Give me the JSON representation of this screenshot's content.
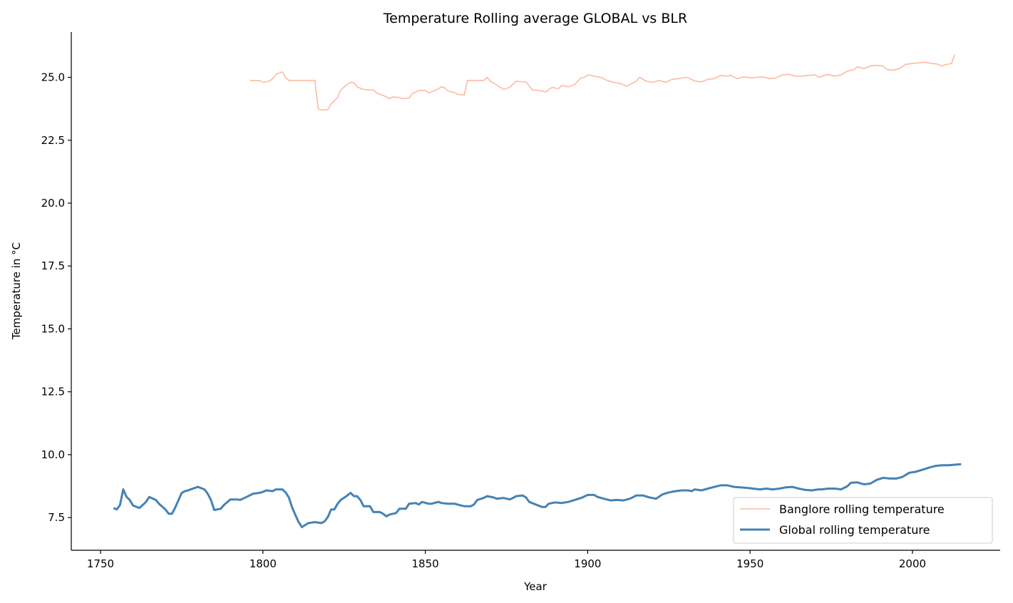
{
  "chart_data": {
    "type": "line",
    "title": "Temperature Rolling average GLOBAL vs BLR",
    "xlabel": "Year",
    "ylabel": "Temperature in °C",
    "xlim": [
      1741,
      2027
    ],
    "ylim": [
      6.2,
      26.8
    ],
    "xticks": [
      1750,
      1800,
      1850,
      1900,
      1950,
      2000
    ],
    "yticks": [
      7.5,
      10.0,
      12.5,
      15.0,
      17.5,
      20.0,
      22.5,
      25.0
    ],
    "grid": false,
    "legend_position": "lower-right",
    "series": [
      {
        "name": "Banglore rolling temperature",
        "color": "#fcbba1",
        "points": [
          [
            1796,
            24.87
          ],
          [
            1799,
            24.87
          ],
          [
            1800,
            24.8
          ],
          [
            1802,
            24.85
          ],
          [
            1803,
            24.95
          ],
          [
            1804,
            25.12
          ],
          [
            1806,
            25.22
          ],
          [
            1807,
            24.98
          ],
          [
            1808,
            24.88
          ],
          [
            1810,
            24.88
          ],
          [
            1812,
            24.88
          ],
          [
            1814,
            24.88
          ],
          [
            1816,
            24.88
          ],
          [
            1817,
            23.75
          ],
          [
            1818,
            23.7
          ],
          [
            1820,
            23.72
          ],
          [
            1821,
            23.95
          ],
          [
            1823,
            24.2
          ],
          [
            1824,
            24.5
          ],
          [
            1826,
            24.73
          ],
          [
            1827,
            24.8
          ],
          [
            1828,
            24.79
          ],
          [
            1829,
            24.62
          ],
          [
            1831,
            24.52
          ],
          [
            1833,
            24.5
          ],
          [
            1834,
            24.5
          ],
          [
            1835,
            24.38
          ],
          [
            1837,
            24.28
          ],
          [
            1839,
            24.15
          ],
          [
            1840,
            24.22
          ],
          [
            1842,
            24.2
          ],
          [
            1843,
            24.15
          ],
          [
            1845,
            24.18
          ],
          [
            1846,
            24.35
          ],
          [
            1848,
            24.48
          ],
          [
            1850,
            24.48
          ],
          [
            1851,
            24.38
          ],
          [
            1853,
            24.48
          ],
          [
            1855,
            24.62
          ],
          [
            1856,
            24.58
          ],
          [
            1857,
            24.45
          ],
          [
            1859,
            24.4
          ],
          [
            1860,
            24.32
          ],
          [
            1862,
            24.3
          ],
          [
            1863,
            24.88
          ],
          [
            1865,
            24.88
          ],
          [
            1867,
            24.88
          ],
          [
            1868,
            24.88
          ],
          [
            1869,
            25.0
          ],
          [
            1870,
            24.85
          ],
          [
            1872,
            24.7
          ],
          [
            1874,
            24.52
          ],
          [
            1876,
            24.6
          ],
          [
            1878,
            24.85
          ],
          [
            1879,
            24.83
          ],
          [
            1881,
            24.82
          ],
          [
            1883,
            24.5
          ],
          [
            1885,
            24.48
          ],
          [
            1887,
            24.42
          ],
          [
            1889,
            24.6
          ],
          [
            1891,
            24.55
          ],
          [
            1892,
            24.68
          ],
          [
            1894,
            24.62
          ],
          [
            1896,
            24.72
          ],
          [
            1898,
            24.98
          ],
          [
            1899,
            25.0
          ],
          [
            1900,
            25.1
          ],
          [
            1902,
            25.05
          ],
          [
            1904,
            25.0
          ],
          [
            1906,
            24.88
          ],
          [
            1908,
            24.8
          ],
          [
            1910,
            24.75
          ],
          [
            1912,
            24.65
          ],
          [
            1914,
            24.78
          ],
          [
            1915,
            24.85
          ],
          [
            1916,
            25.0
          ],
          [
            1918,
            24.85
          ],
          [
            1920,
            24.8
          ],
          [
            1922,
            24.88
          ],
          [
            1924,
            24.8
          ],
          [
            1926,
            24.92
          ],
          [
            1928,
            24.95
          ],
          [
            1930,
            25.0
          ],
          [
            1931,
            24.98
          ],
          [
            1933,
            24.85
          ],
          [
            1935,
            24.82
          ],
          [
            1937,
            24.92
          ],
          [
            1939,
            24.95
          ],
          [
            1941,
            25.08
          ],
          [
            1943,
            25.05
          ],
          [
            1944,
            25.08
          ],
          [
            1946,
            24.95
          ],
          [
            1948,
            25.02
          ],
          [
            1950,
            24.98
          ],
          [
            1952,
            25.0
          ],
          [
            1954,
            25.02
          ],
          [
            1956,
            24.95
          ],
          [
            1958,
            24.98
          ],
          [
            1960,
            25.1
          ],
          [
            1962,
            25.12
          ],
          [
            1964,
            25.05
          ],
          [
            1966,
            25.05
          ],
          [
            1968,
            25.08
          ],
          [
            1970,
            25.1
          ],
          [
            1971,
            25.0
          ],
          [
            1973,
            25.08
          ],
          [
            1974,
            25.12
          ],
          [
            1976,
            25.05
          ],
          [
            1978,
            25.1
          ],
          [
            1980,
            25.25
          ],
          [
            1982,
            25.3
          ],
          [
            1983,
            25.42
          ],
          [
            1985,
            25.35
          ],
          [
            1987,
            25.45
          ],
          [
            1989,
            25.48
          ],
          [
            1991,
            25.45
          ],
          [
            1992,
            25.32
          ],
          [
            1994,
            25.28
          ],
          [
            1996,
            25.35
          ],
          [
            1998,
            25.52
          ],
          [
            2000,
            25.55
          ],
          [
            2002,
            25.58
          ],
          [
            2004,
            25.6
          ],
          [
            2006,
            25.55
          ],
          [
            2008,
            25.52
          ],
          [
            2009,
            25.45
          ],
          [
            2010,
            25.5
          ],
          [
            2012,
            25.55
          ],
          [
            2013,
            25.9
          ]
        ]
      },
      {
        "name": "Global rolling temperature",
        "color": "#4682b4",
        "points": [
          [
            1754,
            7.88
          ],
          [
            1755,
            7.82
          ],
          [
            1756,
            8.0
          ],
          [
            1757,
            8.62
          ],
          [
            1758,
            8.32
          ],
          [
            1759,
            8.2
          ],
          [
            1760,
            7.98
          ],
          [
            1762,
            7.88
          ],
          [
            1763,
            8.0
          ],
          [
            1764,
            8.12
          ],
          [
            1765,
            8.32
          ],
          [
            1767,
            8.2
          ],
          [
            1768,
            8.05
          ],
          [
            1770,
            7.82
          ],
          [
            1771,
            7.65
          ],
          [
            1772,
            7.65
          ],
          [
            1773,
            7.9
          ],
          [
            1775,
            8.48
          ],
          [
            1776,
            8.55
          ],
          [
            1777,
            8.58
          ],
          [
            1778,
            8.63
          ],
          [
            1780,
            8.72
          ],
          [
            1782,
            8.62
          ],
          [
            1783,
            8.45
          ],
          [
            1784,
            8.2
          ],
          [
            1785,
            7.8
          ],
          [
            1787,
            7.85
          ],
          [
            1788,
            8.0
          ],
          [
            1790,
            8.22
          ],
          [
            1792,
            8.22
          ],
          [
            1793,
            8.2
          ],
          [
            1795,
            8.32
          ],
          [
            1797,
            8.45
          ],
          [
            1799,
            8.48
          ],
          [
            1800,
            8.52
          ],
          [
            1801,
            8.58
          ],
          [
            1803,
            8.55
          ],
          [
            1804,
            8.62
          ],
          [
            1806,
            8.62
          ],
          [
            1807,
            8.5
          ],
          [
            1808,
            8.3
          ],
          [
            1809,
            7.9
          ],
          [
            1810,
            7.6
          ],
          [
            1811,
            7.32
          ],
          [
            1812,
            7.12
          ],
          [
            1814,
            7.28
          ],
          [
            1815,
            7.3
          ],
          [
            1816,
            7.32
          ],
          [
            1818,
            7.28
          ],
          [
            1819,
            7.35
          ],
          [
            1820,
            7.52
          ],
          [
            1821,
            7.82
          ],
          [
            1822,
            7.82
          ],
          [
            1823,
            8.05
          ],
          [
            1824,
            8.2
          ],
          [
            1826,
            8.38
          ],
          [
            1827,
            8.48
          ],
          [
            1828,
            8.35
          ],
          [
            1829,
            8.35
          ],
          [
            1830,
            8.2
          ],
          [
            1831,
            7.95
          ],
          [
            1833,
            7.95
          ],
          [
            1834,
            7.72
          ],
          [
            1836,
            7.72
          ],
          [
            1837,
            7.65
          ],
          [
            1838,
            7.55
          ],
          [
            1839,
            7.62
          ],
          [
            1841,
            7.68
          ],
          [
            1842,
            7.85
          ],
          [
            1844,
            7.85
          ],
          [
            1845,
            8.05
          ],
          [
            1847,
            8.08
          ],
          [
            1848,
            8.02
          ],
          [
            1849,
            8.12
          ],
          [
            1851,
            8.05
          ],
          [
            1852,
            8.05
          ],
          [
            1854,
            8.12
          ],
          [
            1855,
            8.08
          ],
          [
            1857,
            8.05
          ],
          [
            1859,
            8.05
          ],
          [
            1861,
            7.98
          ],
          [
            1862,
            7.95
          ],
          [
            1864,
            7.95
          ],
          [
            1865,
            8.02
          ],
          [
            1866,
            8.2
          ],
          [
            1868,
            8.28
          ],
          [
            1869,
            8.35
          ],
          [
            1871,
            8.3
          ],
          [
            1872,
            8.25
          ],
          [
            1874,
            8.28
          ],
          [
            1876,
            8.22
          ],
          [
            1877,
            8.28
          ],
          [
            1878,
            8.35
          ],
          [
            1880,
            8.38
          ],
          [
            1881,
            8.3
          ],
          [
            1882,
            8.12
          ],
          [
            1884,
            8.02
          ],
          [
            1886,
            7.92
          ],
          [
            1887,
            7.92
          ],
          [
            1888,
            8.05
          ],
          [
            1890,
            8.1
          ],
          [
            1892,
            8.08
          ],
          [
            1894,
            8.12
          ],
          [
            1896,
            8.2
          ],
          [
            1898,
            8.28
          ],
          [
            1900,
            8.4
          ],
          [
            1902,
            8.4
          ],
          [
            1903,
            8.32
          ],
          [
            1905,
            8.25
          ],
          [
            1907,
            8.18
          ],
          [
            1909,
            8.2
          ],
          [
            1911,
            8.18
          ],
          [
            1913,
            8.25
          ],
          [
            1915,
            8.38
          ],
          [
            1917,
            8.38
          ],
          [
            1919,
            8.3
          ],
          [
            1921,
            8.25
          ],
          [
            1923,
            8.42
          ],
          [
            1925,
            8.5
          ],
          [
            1927,
            8.55
          ],
          [
            1929,
            8.58
          ],
          [
            1931,
            8.58
          ],
          [
            1932,
            8.55
          ],
          [
            1933,
            8.62
          ],
          [
            1935,
            8.58
          ],
          [
            1937,
            8.65
          ],
          [
            1939,
            8.72
          ],
          [
            1941,
            8.78
          ],
          [
            1943,
            8.78
          ],
          [
            1945,
            8.72
          ],
          [
            1947,
            8.7
          ],
          [
            1949,
            8.68
          ],
          [
            1951,
            8.65
          ],
          [
            1953,
            8.62
          ],
          [
            1955,
            8.65
          ],
          [
            1957,
            8.62
          ],
          [
            1959,
            8.65
          ],
          [
            1961,
            8.7
          ],
          [
            1963,
            8.72
          ],
          [
            1965,
            8.65
          ],
          [
            1967,
            8.6
          ],
          [
            1969,
            8.58
          ],
          [
            1971,
            8.62
          ],
          [
            1972,
            8.62
          ],
          [
            1974,
            8.65
          ],
          [
            1976,
            8.65
          ],
          [
            1978,
            8.62
          ],
          [
            1980,
            8.75
          ],
          [
            1981,
            8.88
          ],
          [
            1983,
            8.9
          ],
          [
            1985,
            8.82
          ],
          [
            1987,
            8.85
          ],
          [
            1989,
            9.0
          ],
          [
            1991,
            9.08
          ],
          [
            1993,
            9.05
          ],
          [
            1995,
            9.05
          ],
          [
            1997,
            9.12
          ],
          [
            1999,
            9.28
          ],
          [
            2001,
            9.32
          ],
          [
            2003,
            9.4
          ],
          [
            2005,
            9.48
          ],
          [
            2007,
            9.55
          ],
          [
            2009,
            9.58
          ],
          [
            2011,
            9.58
          ],
          [
            2013,
            9.6
          ],
          [
            2015,
            9.62
          ]
        ]
      }
    ]
  }
}
